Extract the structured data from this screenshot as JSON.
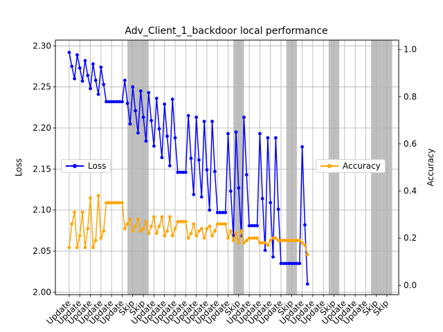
{
  "chart_data": {
    "type": "line",
    "title": "Adv_Client_1_backdoor local performance",
    "ylabel": "Loss",
    "y2label": "Accuracy",
    "ylim": [
      1.997,
      2.307
    ],
    "y2lim": [
      -0.04,
      1.04
    ],
    "yticks": [
      "2.00",
      "2.05",
      "2.10",
      "2.15",
      "2.20",
      "2.25",
      "2.30"
    ],
    "y2ticks": [
      "0.0",
      "0.2",
      "0.4",
      "0.6",
      "0.8",
      "1.0"
    ],
    "grid": true,
    "colors": {
      "loss": "#0000ff",
      "accuracy": "#ffa500",
      "skip_shade": "#808080"
    },
    "categories": [
      "Update",
      "Update",
      "Update",
      "Update",
      "Update",
      "Update",
      "Skip",
      "Skip",
      "Update",
      "Update",
      "Update",
      "Update",
      "Update",
      "Update",
      "Update",
      "Update",
      "Skip",
      "Update",
      "Update",
      "Update",
      "Update",
      "Skip",
      "Update",
      "Update",
      "Update",
      "Skip",
      "Update",
      "Update",
      "Update",
      "Skip",
      "Skip"
    ],
    "skip_rounds": [
      [
        6,
        7
      ],
      [
        16,
        16
      ],
      [
        21,
        21
      ],
      [
        25,
        25
      ],
      [
        29,
        30
      ]
    ],
    "series": [
      {
        "name": "Loss",
        "legend_pos": "left-center",
        "points": [
          [
            0,
            2.292
          ],
          [
            0.25,
            2.275
          ],
          [
            0.5,
            2.26
          ],
          [
            0.75,
            2.289
          ],
          [
            1,
            2.273
          ],
          [
            1.25,
            2.257
          ],
          [
            1.5,
            2.282
          ],
          [
            1.75,
            2.264
          ],
          [
            2,
            2.248
          ],
          [
            2.25,
            2.278
          ],
          [
            2.5,
            2.258
          ],
          [
            2.75,
            2.241
          ],
          [
            3,
            2.274
          ],
          [
            3.25,
            2.253
          ],
          [
            3.5,
            2.232
          ],
          [
            3.75,
            2.232
          ],
          [
            4,
            2.232
          ],
          [
            4.25,
            2.232
          ],
          [
            4.5,
            2.232
          ],
          [
            4.75,
            2.232
          ],
          [
            5,
            2.232
          ],
          [
            5.25,
            2.258
          ],
          [
            5.5,
            2.23
          ],
          [
            5.75,
            2.205
          ],
          [
            6,
            2.25
          ],
          [
            6.25,
            2.221
          ],
          [
            6.5,
            2.194
          ],
          [
            6.75,
            2.245
          ],
          [
            7,
            2.213
          ],
          [
            7.25,
            2.184
          ],
          [
            7.5,
            2.243
          ],
          [
            7.75,
            2.209
          ],
          [
            8,
            2.178
          ],
          [
            8.25,
            2.236
          ],
          [
            8.5,
            2.199
          ],
          [
            8.75,
            2.164
          ],
          [
            9,
            2.229
          ],
          [
            9.25,
            2.19
          ],
          [
            9.5,
            2.154
          ],
          [
            9.75,
            2.235
          ],
          [
            10,
            2.188
          ],
          [
            10.25,
            2.146
          ],
          [
            10.5,
            2.146
          ],
          [
            10.75,
            2.146
          ],
          [
            11,
            2.146
          ],
          [
            11.25,
            2.215
          ],
          [
            11.5,
            2.163
          ],
          [
            11.75,
            2.119
          ],
          [
            12,
            2.213
          ],
          [
            12.25,
            2.161
          ],
          [
            12.5,
            2.116
          ],
          [
            12.75,
            2.208
          ],
          [
            13,
            2.149
          ],
          [
            13.25,
            2.1
          ],
          [
            13.5,
            2.208
          ],
          [
            13.75,
            2.147
          ],
          [
            14,
            2.097
          ],
          [
            14.25,
            2.097
          ],
          [
            14.5,
            2.097
          ],
          [
            14.75,
            2.097
          ],
          [
            15,
            2.193
          ],
          [
            15.25,
            2.123
          ],
          [
            15.5,
            2.069
          ],
          [
            15.75,
            2.195
          ],
          [
            16,
            2.127
          ],
          [
            16.25,
            2.069
          ],
          [
            16.5,
            2.213
          ],
          [
            16.75,
            2.143
          ],
          [
            17,
            2.081
          ],
          [
            17.25,
            2.081
          ],
          [
            17.5,
            2.081
          ],
          [
            17.75,
            2.081
          ],
          [
            18,
            2.193
          ],
          [
            18.25,
            2.114
          ],
          [
            18.5,
            2.051
          ],
          [
            18.75,
            2.188
          ],
          [
            19,
            2.109
          ],
          [
            19.25,
            2.043
          ],
          [
            19.5,
            2.188
          ],
          [
            19.75,
            2.101
          ],
          [
            20,
            2.035
          ],
          [
            20.25,
            2.035
          ],
          [
            20.5,
            2.035
          ],
          [
            20.75,
            2.035
          ],
          [
            21,
            2.035
          ],
          [
            21.25,
            2.035
          ],
          [
            21.5,
            2.035
          ],
          [
            21.75,
            2.035
          ],
          [
            22,
            2.177
          ],
          [
            22.25,
            2.082
          ],
          [
            22.5,
            2.01
          ]
        ]
      },
      {
        "name": "Accuracy",
        "legend_pos": "right-center",
        "points": [
          [
            0,
            0.16
          ],
          [
            0.25,
            0.26
          ],
          [
            0.5,
            0.31
          ],
          [
            0.75,
            0.16
          ],
          [
            1,
            0.21
          ],
          [
            1.25,
            0.31
          ],
          [
            1.5,
            0.16
          ],
          [
            1.75,
            0.24
          ],
          [
            2,
            0.37
          ],
          [
            2.25,
            0.16
          ],
          [
            2.5,
            0.19
          ],
          [
            2.75,
            0.38
          ],
          [
            3,
            0.2
          ],
          [
            3.25,
            0.23
          ],
          [
            3.5,
            0.35
          ],
          [
            3.75,
            0.35
          ],
          [
            4,
            0.35
          ],
          [
            4.25,
            0.35
          ],
          [
            4.5,
            0.35
          ],
          [
            4.75,
            0.35
          ],
          [
            5,
            0.35
          ],
          [
            5.25,
            0.24
          ],
          [
            5.5,
            0.26
          ],
          [
            5.75,
            0.28
          ],
          [
            6,
            0.23
          ],
          [
            6.25,
            0.25
          ],
          [
            6.5,
            0.28
          ],
          [
            6.75,
            0.23
          ],
          [
            7,
            0.24
          ],
          [
            7.25,
            0.27
          ],
          [
            7.5,
            0.22
          ],
          [
            7.75,
            0.25
          ],
          [
            8,
            0.29
          ],
          [
            8.25,
            0.22
          ],
          [
            8.5,
            0.25
          ],
          [
            8.75,
            0.29
          ],
          [
            9,
            0.21
          ],
          [
            9.25,
            0.23
          ],
          [
            9.5,
            0.29
          ],
          [
            9.75,
            0.21
          ],
          [
            10,
            0.24
          ],
          [
            10.25,
            0.27
          ],
          [
            10.5,
            0.27
          ],
          [
            10.75,
            0.27
          ],
          [
            11,
            0.27
          ],
          [
            11.25,
            0.2
          ],
          [
            11.5,
            0.22
          ],
          [
            11.75,
            0.26
          ],
          [
            12,
            0.21
          ],
          [
            12.25,
            0.23
          ],
          [
            12.5,
            0.24
          ],
          [
            12.75,
            0.2
          ],
          [
            13,
            0.24
          ],
          [
            13.25,
            0.25
          ],
          [
            13.5,
            0.21
          ],
          [
            13.75,
            0.23
          ],
          [
            14,
            0.26
          ],
          [
            14.25,
            0.26
          ],
          [
            14.5,
            0.26
          ],
          [
            14.75,
            0.26
          ],
          [
            15,
            0.2
          ],
          [
            15.25,
            0.23
          ],
          [
            15.5,
            0.19
          ],
          [
            15.75,
            0.22
          ],
          [
            16,
            0.18
          ],
          [
            16.25,
            0.23
          ],
          [
            16.5,
            0.18
          ],
          [
            16.75,
            0.19
          ],
          [
            17,
            0.2
          ],
          [
            17.25,
            0.2
          ],
          [
            17.5,
            0.2
          ],
          [
            17.75,
            0.2
          ],
          [
            18,
            0.18
          ],
          [
            18.25,
            0.18
          ],
          [
            18.5,
            0.18
          ],
          [
            18.75,
            0.17
          ],
          [
            19,
            0.19
          ],
          [
            19.25,
            0.2
          ],
          [
            19.5,
            0.2
          ],
          [
            19.75,
            0.19
          ],
          [
            20,
            0.19
          ],
          [
            20.25,
            0.19
          ],
          [
            20.5,
            0.19
          ],
          [
            20.75,
            0.19
          ],
          [
            21,
            0.19
          ],
          [
            21.25,
            0.19
          ],
          [
            21.5,
            0.19
          ],
          [
            21.75,
            0.19
          ],
          [
            22,
            0.18
          ],
          [
            22.25,
            0.17
          ],
          [
            22.5,
            0.13
          ]
        ]
      }
    ]
  }
}
